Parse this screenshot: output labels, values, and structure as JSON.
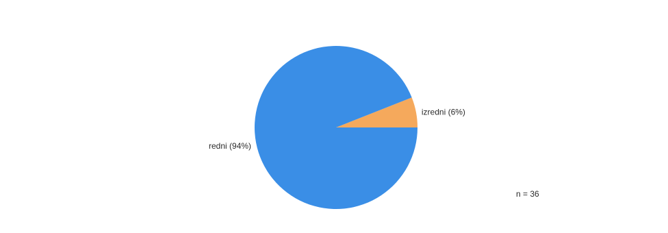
{
  "chart_data": {
    "type": "pie",
    "slices": [
      {
        "name": "redni",
        "label": "redni (94%)",
        "value": 94,
        "color": "#3a8ee6"
      },
      {
        "name": "izredni",
        "label": "izredni (6%)",
        "value": 6,
        "color": "#f5a95c"
      }
    ],
    "annotations": {
      "n_text": "n = 36"
    }
  }
}
